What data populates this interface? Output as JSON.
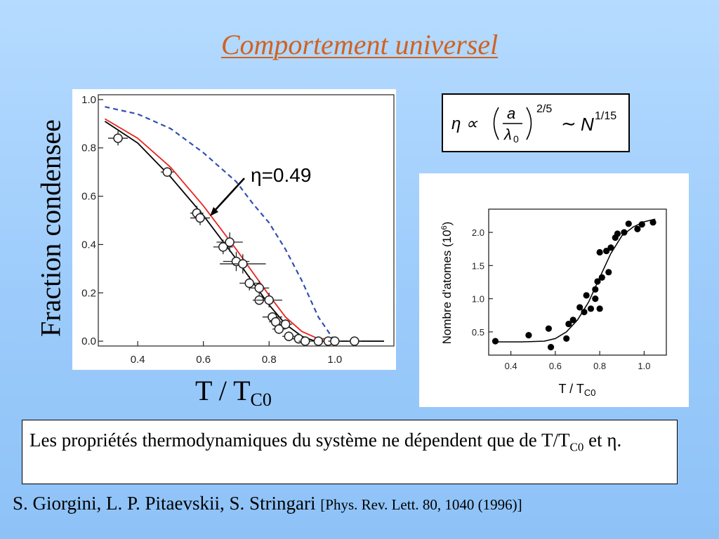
{
  "title": "Comportement universel",
  "left_chart": {
    "ylabel": "Fraction condensee",
    "xlabel_main": "T / T",
    "xlabel_sub": "C0",
    "annotation": "η=0.49",
    "colors": {
      "black_curve": "#000000",
      "red_curve": "#e8251f",
      "dashed_curve": "#3050b0"
    }
  },
  "formula": {
    "lhs": "η ∝",
    "frac_num": "a",
    "frac_den": "λ",
    "frac_den_sub": "0",
    "exponent": "2/5",
    "tilde": "∼",
    "rhs": "N",
    "rhs_exp": "1/15"
  },
  "right_chart": {
    "ylabel_main": "Nombre d'atomes (10",
    "ylabel_sup": "6",
    "ylabel_end": ")",
    "xlabel_main": "T / T",
    "xlabel_sub": "C0"
  },
  "note": {
    "text1": "Les propriétés thermodynamiques du système ne dépendent que de T/T",
    "sub": "C0",
    "text2": " et η."
  },
  "citation": {
    "authors": "S. Giorgini, L. P. Pitaevskii, S. Stringari ",
    "ref": "[Phys. Rev. Lett. 80, 1040 (1996)]"
  },
  "chart_data": [
    {
      "type": "scatter",
      "title": "",
      "xlabel": "T / TC0",
      "ylabel": "Fraction condensee",
      "xlim": [
        0.28,
        1.18
      ],
      "ylim": [
        -0.02,
        1.02
      ],
      "xticks": [
        "0.4",
        "0.6",
        "0.8",
        "1.0"
      ],
      "yticks": [
        "0.0",
        "0.2",
        "0.4",
        "0.6",
        "0.8",
        "1.0"
      ],
      "points": [
        {
          "x": 0.34,
          "y": 0.84,
          "xerr": 0.03,
          "yerr": 0.03
        },
        {
          "x": 0.49,
          "y": 0.7,
          "xerr": 0.02,
          "yerr": 0.01
        },
        {
          "x": 0.58,
          "y": 0.53,
          "xerr": 0.02,
          "yerr": 0.03
        },
        {
          "x": 0.59,
          "y": 0.51,
          "xerr": 0.03,
          "yerr": 0.03
        },
        {
          "x": 0.66,
          "y": 0.39,
          "xerr": 0.03,
          "yerr": 0.03
        },
        {
          "x": 0.68,
          "y": 0.41,
          "xerr": 0.04,
          "yerr": 0.04
        },
        {
          "x": 0.7,
          "y": 0.33,
          "xerr": 0.04,
          "yerr": 0.04
        },
        {
          "x": 0.72,
          "y": 0.32,
          "xerr": 0.07,
          "yerr": 0.04
        },
        {
          "x": 0.74,
          "y": 0.24,
          "xerr": 0.03,
          "yerr": 0.03
        },
        {
          "x": 0.77,
          "y": 0.22,
          "xerr": 0.03,
          "yerr": 0.03
        },
        {
          "x": 0.77,
          "y": 0.17,
          "xerr": 0.02,
          "yerr": 0.02
        },
        {
          "x": 0.8,
          "y": 0.17,
          "xerr": 0.04,
          "yerr": 0.03
        },
        {
          "x": 0.81,
          "y": 0.1,
          "xerr": 0.03,
          "yerr": 0.02
        },
        {
          "x": 0.82,
          "y": 0.08,
          "xerr": 0.02,
          "yerr": 0.02
        },
        {
          "x": 0.83,
          "y": 0.05,
          "xerr": 0.02,
          "yerr": 0.02
        },
        {
          "x": 0.85,
          "y": 0.07,
          "xerr": 0.02,
          "yerr": 0.02
        },
        {
          "x": 0.86,
          "y": 0.02,
          "xerr": 0.02,
          "yerr": 0.02
        },
        {
          "x": 0.89,
          "y": 0.01,
          "xerr": 0.02,
          "yerr": 0.02
        },
        {
          "x": 0.91,
          "y": 0.0,
          "xerr": 0.02,
          "yerr": 0.02
        },
        {
          "x": 0.95,
          "y": 0.0,
          "xerr": 0.02,
          "yerr": 0.01
        },
        {
          "x": 0.98,
          "y": 0.0,
          "xerr": 0.02,
          "yerr": 0.01
        },
        {
          "x": 1.0,
          "y": 0.0,
          "xerr": 0.02,
          "yerr": 0.01
        },
        {
          "x": 1.06,
          "y": 0.0,
          "xerr": 0.02,
          "yerr": 0.01
        }
      ],
      "curves": [
        {
          "style": "solid",
          "color": "#000000",
          "x": [
            0.3,
            0.4,
            0.5,
            0.6,
            0.7,
            0.8,
            0.85,
            0.9,
            0.94,
            0.97,
            1.0,
            1.15
          ],
          "y": [
            0.91,
            0.82,
            0.68,
            0.52,
            0.34,
            0.15,
            0.07,
            0.02,
            0.0,
            0.0,
            0.0,
            0.0
          ]
        },
        {
          "style": "solid",
          "color": "#e8251f",
          "x": [
            0.3,
            0.4,
            0.5,
            0.6,
            0.7,
            0.8,
            0.85,
            0.9,
            0.95,
            1.0
          ],
          "y": [
            0.92,
            0.84,
            0.72,
            0.56,
            0.38,
            0.19,
            0.1,
            0.04,
            0.01,
            0.01
          ]
        },
        {
          "style": "dashed",
          "color": "#3050b0",
          "x": [
            0.3,
            0.4,
            0.5,
            0.6,
            0.7,
            0.75,
            0.8,
            0.85,
            0.9,
            0.95,
            1.0
          ],
          "y": [
            0.97,
            0.94,
            0.88,
            0.78,
            0.66,
            0.57,
            0.49,
            0.38,
            0.25,
            0.1,
            0.0
          ]
        }
      ]
    },
    {
      "type": "scatter",
      "title": "",
      "xlabel": "T / TC0",
      "ylabel": "Nombre d'atomes (10^6)",
      "xlim": [
        0.3,
        1.1
      ],
      "ylim": [
        0.15,
        2.35
      ],
      "xticks": [
        "0.4",
        "0.6",
        "0.8",
        "1.0"
      ],
      "yticks": [
        "0.5",
        "1.0",
        "1.5",
        "2.0"
      ],
      "points": [
        {
          "x": 0.33,
          "y": 0.36
        },
        {
          "x": 0.48,
          "y": 0.45
        },
        {
          "x": 0.57,
          "y": 0.55
        },
        {
          "x": 0.58,
          "y": 0.27
        },
        {
          "x": 0.65,
          "y": 0.4
        },
        {
          "x": 0.66,
          "y": 0.62
        },
        {
          "x": 0.68,
          "y": 0.68
        },
        {
          "x": 0.71,
          "y": 0.87
        },
        {
          "x": 0.73,
          "y": 0.8
        },
        {
          "x": 0.74,
          "y": 1.05
        },
        {
          "x": 0.76,
          "y": 0.85
        },
        {
          "x": 0.78,
          "y": 1.0
        },
        {
          "x": 0.78,
          "y": 1.14
        },
        {
          "x": 0.79,
          "y": 1.26
        },
        {
          "x": 0.8,
          "y": 0.85
        },
        {
          "x": 0.8,
          "y": 1.7
        },
        {
          "x": 0.81,
          "y": 1.32
        },
        {
          "x": 0.83,
          "y": 1.72
        },
        {
          "x": 0.84,
          "y": 1.4
        },
        {
          "x": 0.85,
          "y": 1.77
        },
        {
          "x": 0.87,
          "y": 1.92
        },
        {
          "x": 0.88,
          "y": 1.98
        },
        {
          "x": 0.91,
          "y": 2.0
        },
        {
          "x": 0.93,
          "y": 2.13
        },
        {
          "x": 0.97,
          "y": 2.05
        },
        {
          "x": 0.99,
          "y": 2.12
        },
        {
          "x": 1.04,
          "y": 2.15
        }
      ],
      "curves": [
        {
          "style": "solid",
          "color": "#000000",
          "x": [
            0.32,
            0.45,
            0.55,
            0.6,
            0.65,
            0.7,
            0.75,
            0.8,
            0.85,
            0.9,
            0.95,
            1.0,
            1.05
          ],
          "y": [
            0.35,
            0.35,
            0.36,
            0.4,
            0.5,
            0.68,
            0.95,
            1.32,
            1.68,
            1.95,
            2.08,
            2.16,
            2.2
          ]
        }
      ]
    }
  ]
}
